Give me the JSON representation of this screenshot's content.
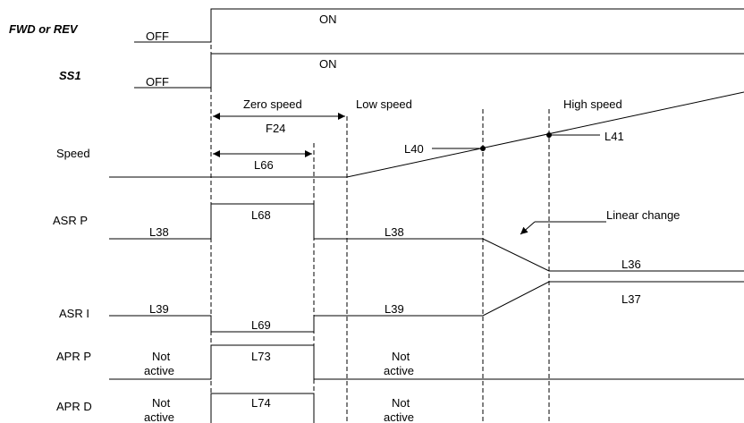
{
  "signals": {
    "fwd_rev": "FWD or REV",
    "ss1": "SS1",
    "speed": "Speed",
    "asr_p": "ASR P",
    "asr_i": "ASR I",
    "apr_p": "APR P",
    "apr_d": "APR D"
  },
  "states": {
    "off": "OFF",
    "on": "ON"
  },
  "phases": {
    "zero": "Zero speed",
    "low": "Low speed",
    "high": "High speed"
  },
  "params": {
    "f24": "F24",
    "l66": "L66",
    "l40": "L40",
    "l41": "L41",
    "l68": "L68",
    "l38": "L38",
    "l36": "L36",
    "l39": "L39",
    "l69": "L69",
    "l37": "L37",
    "l73": "L73",
    "l74": "L74"
  },
  "notes": {
    "linear_change": "Linear change",
    "not": "Not",
    "active": "active"
  }
}
